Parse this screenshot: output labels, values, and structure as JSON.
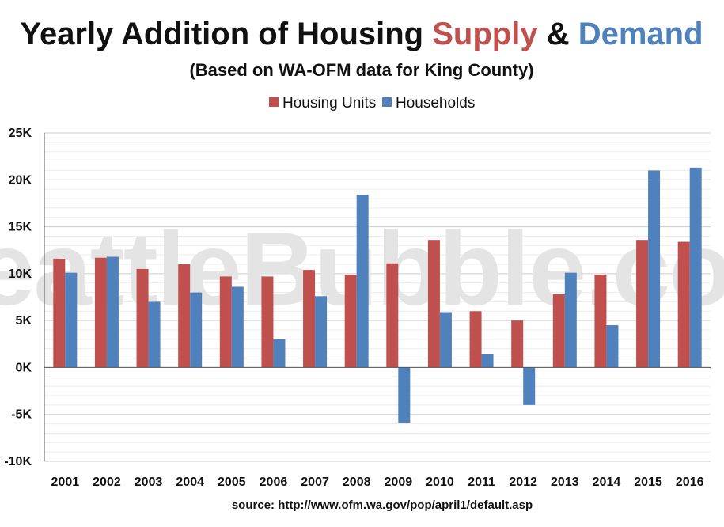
{
  "chart_data": {
    "type": "bar",
    "title": {
      "part1": "Yearly Addition of Housing ",
      "supply": "Supply",
      "amp": " & ",
      "demand": "Demand"
    },
    "subtitle": "(Based on WA-OFM data for King County)",
    "watermark": "SeattleBubble.com",
    "source": "source: http://www.ofm.wa.gov/pop/april1/default.asp",
    "legend_position": "top-center",
    "grid": true,
    "ylim": [
      -10000,
      25000
    ],
    "yticks": [
      {
        "value": 25000,
        "label": "25K"
      },
      {
        "value": 20000,
        "label": "20K"
      },
      {
        "value": 15000,
        "label": "15K"
      },
      {
        "value": 10000,
        "label": "10K"
      },
      {
        "value": 5000,
        "label": "5K"
      },
      {
        "value": 0,
        "label": "0K"
      },
      {
        "value": -5000,
        "label": "-5K"
      },
      {
        "value": -10000,
        "label": "-10K"
      }
    ],
    "categories": [
      "2001",
      "2002",
      "2003",
      "2004",
      "2005",
      "2006",
      "2007",
      "2008",
      "2009",
      "2010",
      "2011",
      "2012",
      "2013",
      "2014",
      "2015",
      "2016"
    ],
    "series": [
      {
        "name": "Housing Units",
        "color": "#c0504d",
        "values": [
          11600,
          11700,
          10500,
          11000,
          9700,
          9700,
          10400,
          9900,
          11100,
          13600,
          6000,
          5000,
          7800,
          9900,
          13600,
          13400
        ]
      },
      {
        "name": "Households",
        "color": "#4f81bd",
        "values": [
          10100,
          11800,
          7000,
          8000,
          8600,
          3000,
          7600,
          18400,
          -5900,
          5900,
          1400,
          -4000,
          10100,
          4500,
          21000,
          21300
        ]
      }
    ],
    "colors": {
      "supply": "#c0504d",
      "demand": "#4f81bd",
      "text": "#111111",
      "grid": "#d9d9d9"
    }
  }
}
